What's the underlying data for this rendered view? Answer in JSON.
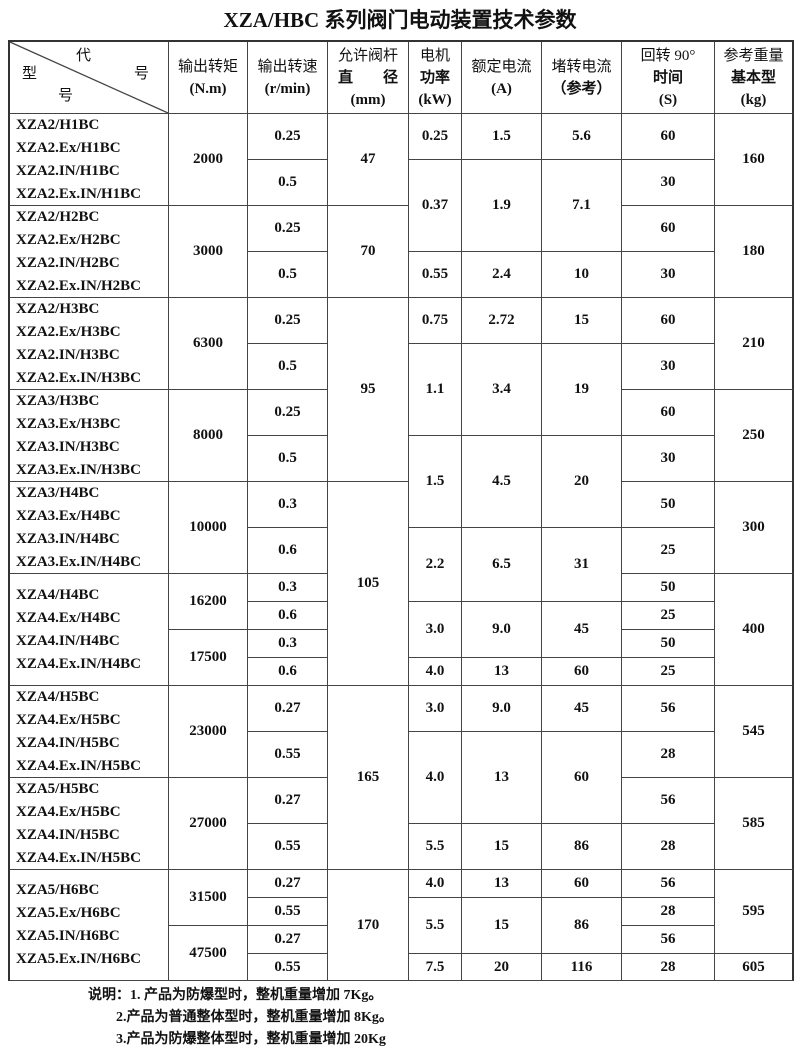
{
  "title": "XZA/HBC 系列阀门电动装置技术参数",
  "header": {
    "corner": {
      "top": "代",
      "right": "号",
      "left": "型",
      "bottom": "号"
    },
    "columns": [
      {
        "line1": "输出转矩",
        "line2": "(N.m)"
      },
      {
        "line1": "输出转速",
        "line2": "(r/min)"
      },
      {
        "line1": "允许阀杆",
        "line2": "直　　径",
        "line3": "(mm)"
      },
      {
        "line1": "电机",
        "line2": "功率",
        "line3": "(kW)"
      },
      {
        "line1": "额定电流",
        "line2": "(A)"
      },
      {
        "line1": "堵转电流",
        "line2": "（参考）"
      },
      {
        "line1": "回转  90°",
        "line2": "时间",
        "line3": "(S)"
      },
      {
        "line1": "参考重量",
        "line2": "基本型",
        "line3": "(kg)"
      }
    ]
  },
  "models": [
    [
      "XZA2/H1BC",
      "XZA2.Ex/H1BC",
      "XZA2.IN/H1BC",
      "XZA2.Ex.IN/H1BC"
    ],
    [
      "XZA2/H2BC",
      "XZA2.Ex/H2BC",
      "XZA2.IN/H2BC",
      "XZA2.Ex.IN/H2BC"
    ],
    [
      "XZA2/H3BC",
      "XZA2.Ex/H3BC",
      "XZA2.IN/H3BC",
      "XZA2.Ex.IN/H3BC"
    ],
    [
      "XZA3/H3BC",
      "XZA3.Ex/H3BC",
      "XZA3.IN/H3BC",
      "XZA3.Ex.IN/H3BC"
    ],
    [
      "XZA3/H4BC",
      "XZA3.Ex/H4BC",
      "XZA3.IN/H4BC",
      "XZA3.Ex.IN/H4BC"
    ],
    [
      "XZA4/H4BC",
      "XZA4.Ex/H4BC",
      "XZA4.IN/H4BC",
      "XZA4.Ex.IN/H4BC"
    ],
    [
      "XZA4/H5BC",
      "XZA4.Ex/H5BC",
      "XZA4.IN/H5BC",
      "XZA4.Ex.IN/H5BC"
    ],
    [
      "XZA5/H5BC",
      "XZA4.Ex/H5BC",
      "XZA4.IN/H5BC",
      "XZA4.Ex.IN/H5BC"
    ],
    [
      "XZA5/H6BC",
      "XZA5.Ex/H6BC",
      "XZA5.IN/H6BC",
      "XZA5.Ex.IN/H6BC"
    ]
  ],
  "torque": [
    "2000",
    "3000",
    "6300",
    "8000",
    "10000",
    "16200",
    "17500",
    "23000",
    "27000",
    "31500",
    "47500"
  ],
  "speed": [
    "0.25",
    "0.5",
    "0.25",
    "0.5",
    "0.25",
    "0.5",
    "0.25",
    "0.5",
    "0.3",
    "0.6",
    "0.3",
    "0.6",
    "0.3",
    "0.6",
    "0.27",
    "0.55",
    "0.27",
    "0.55",
    "0.27",
    "0.55",
    "0.27",
    "0.55"
  ],
  "stem_diameter": [
    "47",
    "70",
    "95",
    "105",
    "165",
    "170"
  ],
  "motor_power": [
    "0.25",
    "0.37",
    "0.55",
    "0.75",
    "1.1",
    "1.5",
    "2.2",
    "3.0",
    "4.0",
    "3.0",
    "4.0",
    "5.5",
    "4.0",
    "5.5",
    "7.5"
  ],
  "rated_current": [
    "1.5",
    "1.9",
    "2.4",
    "2.72",
    "3.4",
    "4.5",
    "6.5",
    "9.0",
    "13",
    "9.0",
    "13",
    "15",
    "13",
    "15",
    "20"
  ],
  "stall_current": [
    "5.6",
    "7.1",
    "10",
    "15",
    "19",
    "20",
    "31",
    "45",
    "60",
    "45",
    "60",
    "86",
    "60",
    "86",
    "116"
  ],
  "rotation_time": [
    "60",
    "30",
    "60",
    "30",
    "60",
    "30",
    "60",
    "30",
    "50",
    "25",
    "50",
    "25",
    "50",
    "25",
    "56",
    "28",
    "56",
    "28",
    "56",
    "28",
    "56",
    "28"
  ],
  "weight": [
    "160",
    "180",
    "210",
    "250",
    "300",
    "400",
    "545",
    "585",
    "595",
    "605"
  ],
  "notes": [
    "说明：1. 产品为防爆型时，整机重量增加 7Kg。",
    "        2.产品为普通整体型时，整机重量增加 8Kg。",
    "        3.产品为防爆整体型时，整机重量增加 20Kg"
  ]
}
